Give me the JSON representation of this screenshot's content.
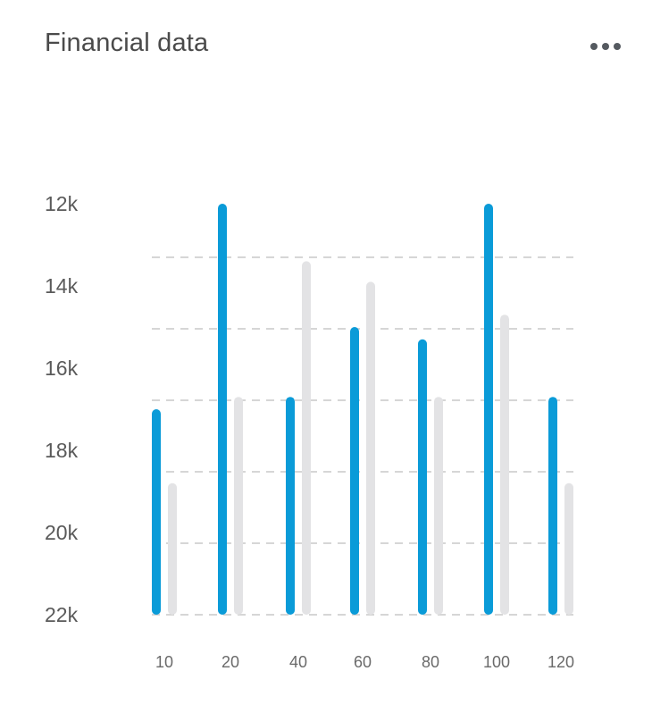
{
  "header": {
    "title": "Financial data",
    "more_icon": "more-horizontal-icon"
  },
  "colors": {
    "primary": "#0a9bd8",
    "secondary": "#e3e3e5",
    "grid": "#c9c9c9",
    "text": "#4a4a4a"
  },
  "chart_data": {
    "type": "bar",
    "title": "Financial data",
    "xlabel": "",
    "ylabel": "",
    "categories": [
      "10",
      "20",
      "40",
      "60",
      "80",
      "100",
      "120"
    ],
    "y_tick_labels": [
      "12k",
      "14k",
      "16k",
      "18k",
      "20k",
      "22k"
    ],
    "y_ticks": [
      12000,
      14000,
      16000,
      18000,
      20000,
      22000
    ],
    "ylim": [
      12000,
      22000
    ],
    "y_axis_inverted": true,
    "grid": "horizontal-dashed",
    "legend": "none",
    "series": [
      {
        "values": [
          17000,
          12000,
          16700,
          15000,
          15300,
          12000,
          16700
        ]
      },
      {
        "values": [
          18800,
          16700,
          13400,
          13900,
          16700,
          14700,
          18800
        ]
      }
    ]
  }
}
